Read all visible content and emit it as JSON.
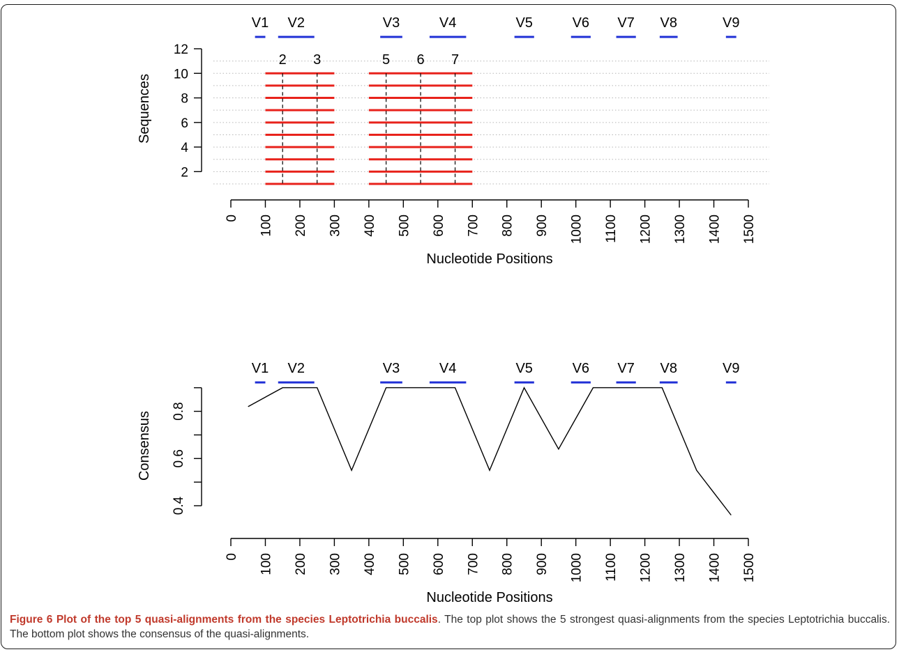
{
  "colors": {
    "region_bar": "#1f2fd6",
    "alignment_line": "#e8221b",
    "consensus_line": "#000000",
    "caption_bold": "#c0392b",
    "caption_text": "#333333"
  },
  "caption": {
    "bold": "Figure 6 Plot of the top 5 quasi-alignments from the species Leptotrichia buccalis",
    "body": ". The top plot shows the 5 strongest quasi-alignments from the species Leptotrichia buccalis. The bottom plot shows the consensus of the quasi-alignments."
  },
  "chart_data": [
    {
      "type": "line",
      "xlabel": "Nucleotide Positions",
      "ylabel": "Sequences",
      "xlim": [
        0,
        1500
      ],
      "ylim": [
        1,
        12
      ],
      "x_ticks": [
        0,
        100,
        200,
        300,
        400,
        500,
        600,
        700,
        800,
        900,
        1000,
        1100,
        1200,
        1300,
        1400,
        1500
      ],
      "y_ticks": [
        2,
        4,
        6,
        8,
        10,
        12
      ],
      "grid": "horizontal-dotted",
      "variable_regions": [
        {
          "label": "V1",
          "start": 70,
          "end": 100
        },
        {
          "label": "V2",
          "start": 137,
          "end": 242
        },
        {
          "label": "V3",
          "start": 433,
          "end": 497
        },
        {
          "label": "V4",
          "start": 576,
          "end": 682
        },
        {
          "label": "V5",
          "start": 822,
          "end": 879
        },
        {
          "label": "V6",
          "start": 986,
          "end": 1043
        },
        {
          "label": "V7",
          "start": 1117,
          "end": 1174
        },
        {
          "label": "V8",
          "start": 1243,
          "end": 1295
        },
        {
          "label": "V9",
          "start": 1435,
          "end": 1465
        }
      ],
      "sequence_rows": [
        1,
        2,
        3,
        4,
        5,
        6,
        7,
        8,
        9,
        10
      ],
      "alignment_segments": [
        {
          "start": 100,
          "end": 300
        },
        {
          "start": 400,
          "end": 700
        }
      ],
      "window_markers": [
        {
          "label": "2",
          "x": 150
        },
        {
          "label": "3",
          "x": 250
        },
        {
          "label": "5",
          "x": 450
        },
        {
          "label": "6",
          "x": 550
        },
        {
          "label": "7",
          "x": 650
        }
      ]
    },
    {
      "type": "line",
      "xlabel": "Nucleotide Positions",
      "ylabel": "Consensus",
      "xlim": [
        0,
        1500
      ],
      "ylim": [
        0.36,
        0.9
      ],
      "x_ticks": [
        0,
        100,
        200,
        300,
        400,
        500,
        600,
        700,
        800,
        900,
        1000,
        1100,
        1200,
        1300,
        1400,
        1500
      ],
      "y_ticks": [
        0.4,
        0.5,
        0.6,
        0.7,
        0.8,
        0.9
      ],
      "y_tick_labels": [
        "0.4",
        "",
        "0.6",
        "",
        "0.8",
        ""
      ],
      "variable_regions": [
        {
          "label": "V1",
          "start": 70,
          "end": 100
        },
        {
          "label": "V2",
          "start": 137,
          "end": 242
        },
        {
          "label": "V3",
          "start": 433,
          "end": 497
        },
        {
          "label": "V4",
          "start": 576,
          "end": 682
        },
        {
          "label": "V5",
          "start": 822,
          "end": 879
        },
        {
          "label": "V6",
          "start": 986,
          "end": 1043
        },
        {
          "label": "V7",
          "start": 1117,
          "end": 1174
        },
        {
          "label": "V8",
          "start": 1243,
          "end": 1295
        },
        {
          "label": "V9",
          "start": 1435,
          "end": 1465
        }
      ],
      "series": [
        {
          "x": [
            50,
            150,
            250,
            350,
            450,
            550,
            650,
            750,
            850,
            950,
            1050,
            1150,
            1250,
            1350,
            1450
          ],
          "values": [
            0.82,
            0.9,
            0.9,
            0.55,
            0.9,
            0.9,
            0.9,
            0.55,
            0.9,
            0.64,
            0.9,
            0.9,
            0.9,
            0.55,
            0.36
          ]
        }
      ]
    }
  ]
}
